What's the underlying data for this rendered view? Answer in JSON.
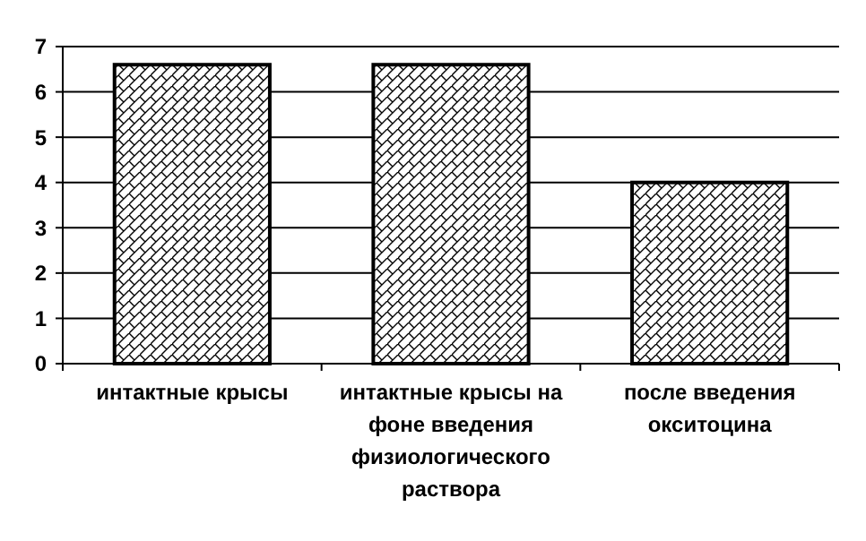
{
  "chart_data": {
    "type": "bar",
    "categories": [
      "интактные крысы",
      "интактные крысы на фоне введения физиологического раствора",
      "после введения окситоцина"
    ],
    "values": [
      6.6,
      6.6,
      4.0
    ],
    "color": "#000000",
    "ylim": [
      0,
      7
    ],
    "yticks": [
      0,
      1,
      2,
      3,
      4,
      5,
      6,
      7
    ],
    "grid": "y"
  }
}
